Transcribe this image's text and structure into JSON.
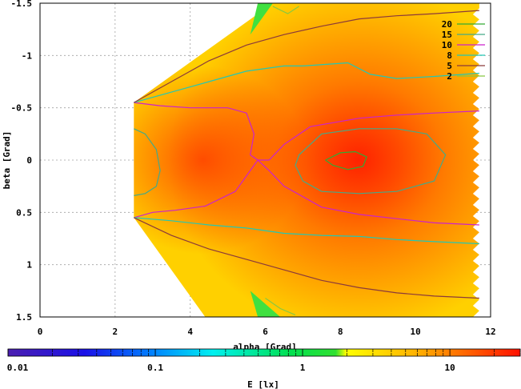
{
  "chart_data": {
    "type": "heatmap",
    "title": "",
    "xlabel": "alpha [Grad]",
    "ylabel": "beta [Grad]",
    "xlim": [
      0,
      12
    ],
    "ylim": [
      -1.5,
      1.5
    ],
    "y_reversed": true,
    "grid": true,
    "x_ticks": [
      "0",
      "2",
      "4",
      "6",
      "8",
      "10",
      "12"
    ],
    "y_ticks": [
      "-1.5",
      "-1",
      "-0.5",
      "0",
      "0.5",
      "1",
      "1.5"
    ],
    "colorbar": {
      "label": "E [lx]",
      "scale": "log",
      "range": [
        0.01,
        30
      ],
      "ticks": [
        "0.01",
        "0.1",
        "1",
        "10"
      ],
      "colors": [
        "#4b0082",
        "#0000ff",
        "#00ffff",
        "#00ff00",
        "#ffff00",
        "#ff0000"
      ]
    },
    "legend": {
      "placement": "top-right",
      "entries": [
        {
          "label": "20",
          "color": "#33aa33"
        },
        {
          "label": "15",
          "color": "#44aa88"
        },
        {
          "label": "10",
          "color": "#cc22cc"
        },
        {
          "label": "8",
          "color": "#22c8b4"
        },
        {
          "label": "5",
          "color": "#8b3a3a"
        },
        {
          "label": "2",
          "color": "#88c840"
        }
      ]
    },
    "surface": {
      "alpha_range": [
        2.5,
        11.7
      ],
      "beta_halfwidth_at_alpha_min": 0.55,
      "peak": {
        "alpha": 8.5,
        "beta": 0.0,
        "value": 20
      }
    },
    "contours": [
      {
        "level": 20,
        "points": [
          [
            7.6,
            0.0
          ],
          [
            8.0,
            -0.07
          ],
          [
            8.4,
            -0.08
          ],
          [
            8.7,
            -0.03
          ],
          [
            8.6,
            0.06
          ],
          [
            8.2,
            0.09
          ],
          [
            7.8,
            0.05
          ],
          [
            7.6,
            0.0
          ]
        ]
      },
      {
        "level": 15,
        "points": [
          [
            2.5,
            -0.3
          ],
          [
            2.8,
            -0.25
          ],
          [
            3.1,
            -0.1
          ],
          [
            3.2,
            0.1
          ],
          [
            3.1,
            0.25
          ],
          [
            2.8,
            0.32
          ],
          [
            2.5,
            0.34
          ]
        ]
      },
      {
        "level": 15,
        "points": [
          [
            6.9,
            -0.05
          ],
          [
            7.5,
            -0.25
          ],
          [
            8.5,
            -0.3
          ],
          [
            9.5,
            -0.3
          ],
          [
            10.3,
            -0.25
          ],
          [
            10.8,
            -0.05
          ],
          [
            10.5,
            0.2
          ],
          [
            9.5,
            0.3
          ],
          [
            8.5,
            0.32
          ],
          [
            7.5,
            0.3
          ],
          [
            7.0,
            0.2
          ],
          [
            6.8,
            0.05
          ],
          [
            6.9,
            -0.05
          ]
        ]
      },
      {
        "level": 10,
        "points": [
          [
            2.5,
            -0.55
          ],
          [
            3.2,
            -0.52
          ],
          [
            4,
            -0.5
          ],
          [
            5,
            -0.5
          ],
          [
            5.5,
            -0.45
          ],
          [
            5.7,
            -0.25
          ],
          [
            5.6,
            -0.05
          ],
          [
            5.8,
            0.0
          ],
          [
            6.1,
            0.0
          ],
          [
            6.5,
            -0.15
          ],
          [
            7.2,
            -0.32
          ],
          [
            8.5,
            -0.4
          ],
          [
            9.5,
            -0.43
          ],
          [
            10.5,
            -0.45
          ],
          [
            11.7,
            -0.47
          ]
        ]
      },
      {
        "level": 10,
        "points": [
          [
            2.5,
            0.55
          ],
          [
            3.0,
            0.5
          ],
          [
            3.6,
            0.48
          ],
          [
            4.4,
            0.44
          ],
          [
            5.2,
            0.3
          ],
          [
            5.6,
            0.1
          ],
          [
            5.8,
            0.0
          ],
          [
            6.1,
            0.1
          ],
          [
            6.5,
            0.25
          ],
          [
            7.5,
            0.45
          ],
          [
            8.5,
            0.52
          ],
          [
            9.5,
            0.56
          ],
          [
            10.5,
            0.6
          ],
          [
            11.7,
            0.62
          ]
        ]
      },
      {
        "level": 8,
        "points": [
          [
            2.5,
            -0.55
          ],
          [
            3.5,
            -0.65
          ],
          [
            4.5,
            -0.75
          ],
          [
            5.5,
            -0.85
          ],
          [
            6.5,
            -0.9
          ],
          [
            7.0,
            -0.9
          ],
          [
            8.2,
            -0.93
          ],
          [
            8.8,
            -0.82
          ],
          [
            9.5,
            -0.78
          ],
          [
            10.5,
            -0.8
          ],
          [
            11.7,
            -0.83
          ]
        ]
      },
      {
        "level": 8,
        "points": [
          [
            2.5,
            0.55
          ],
          [
            3.5,
            0.58
          ],
          [
            4.5,
            0.62
          ],
          [
            5.5,
            0.65
          ],
          [
            6.5,
            0.7
          ],
          [
            7.5,
            0.72
          ],
          [
            8.5,
            0.73
          ],
          [
            9.5,
            0.76
          ],
          [
            10.5,
            0.78
          ],
          [
            11.7,
            0.8
          ]
        ]
      },
      {
        "level": 5,
        "points": [
          [
            2.5,
            -0.55
          ],
          [
            3.5,
            -0.75
          ],
          [
            4.5,
            -0.95
          ],
          [
            5.5,
            -1.1
          ],
          [
            6.5,
            -1.2
          ],
          [
            7.5,
            -1.28
          ],
          [
            8.5,
            -1.35
          ],
          [
            9.5,
            -1.38
          ],
          [
            10.5,
            -1.4
          ],
          [
            11.7,
            -1.43
          ]
        ]
      },
      {
        "level": 5,
        "points": [
          [
            2.5,
            0.55
          ],
          [
            3.5,
            0.72
          ],
          [
            4.5,
            0.85
          ],
          [
            5.5,
            0.95
          ],
          [
            6.5,
            1.05
          ],
          [
            7.5,
            1.15
          ],
          [
            8.5,
            1.22
          ],
          [
            9.5,
            1.27
          ],
          [
            10.5,
            1.3
          ],
          [
            11.7,
            1.32
          ]
        ]
      },
      {
        "level": 2,
        "points": [
          [
            6.2,
            -1.47
          ],
          [
            6.6,
            -1.4
          ],
          [
            6.9,
            -1.47
          ]
        ]
      },
      {
        "level": 2,
        "points": [
          [
            6.0,
            1.32
          ],
          [
            6.4,
            1.42
          ],
          [
            6.8,
            1.48
          ]
        ]
      }
    ]
  }
}
